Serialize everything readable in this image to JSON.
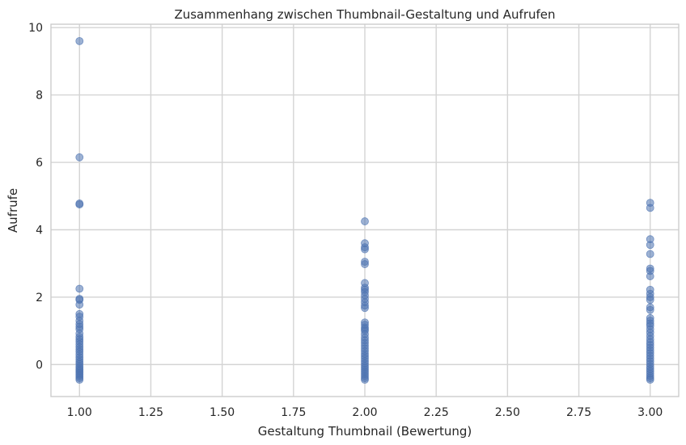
{
  "chart_data": {
    "type": "scatter",
    "title": "Zusammenhang zwischen Thumbnail-Gestaltung und Aufrufen",
    "xlabel": "Gestaltung Thumbnail (Bewertung)",
    "ylabel": "Aufrufe",
    "xlim": [
      0.9,
      3.1
    ],
    "ylim": [
      -0.95,
      10.1
    ],
    "x_ticks": [
      1.0,
      1.25,
      1.5,
      1.75,
      2.0,
      2.25,
      2.5,
      2.75,
      3.0
    ],
    "x_tick_labels": [
      "1.00",
      "1.25",
      "1.50",
      "1.75",
      "2.00",
      "2.25",
      "2.50",
      "2.75",
      "3.00"
    ],
    "y_ticks": [
      0,
      2,
      4,
      6,
      8,
      10
    ],
    "y_tick_labels": [
      "0",
      "2",
      "4",
      "6",
      "8",
      "10"
    ],
    "grid": true,
    "marker_color": "#4c72b0",
    "marker_opacity": 0.55,
    "points": [
      {
        "x": 1,
        "y": 9.6
      },
      {
        "x": 1,
        "y": 6.15
      },
      {
        "x": 1,
        "y": 4.78
      },
      {
        "x": 1,
        "y": 4.75
      },
      {
        "x": 1,
        "y": 2.25
      },
      {
        "x": 1,
        "y": 1.95
      },
      {
        "x": 1,
        "y": 1.92
      },
      {
        "x": 1,
        "y": 1.78
      },
      {
        "x": 1,
        "y": 1.5
      },
      {
        "x": 1,
        "y": 1.42
      },
      {
        "x": 1,
        "y": 1.3
      },
      {
        "x": 1,
        "y": 1.2
      },
      {
        "x": 1,
        "y": 1.12
      },
      {
        "x": 1,
        "y": 1.05
      },
      {
        "x": 1,
        "y": 0.92
      },
      {
        "x": 1,
        "y": 0.82
      },
      {
        "x": 1,
        "y": 0.75
      },
      {
        "x": 1,
        "y": 0.68
      },
      {
        "x": 1,
        "y": 0.6
      },
      {
        "x": 1,
        "y": 0.52
      },
      {
        "x": 1,
        "y": 0.45
      },
      {
        "x": 1,
        "y": 0.38
      },
      {
        "x": 1,
        "y": 0.3
      },
      {
        "x": 1,
        "y": 0.22
      },
      {
        "x": 1,
        "y": 0.15
      },
      {
        "x": 1,
        "y": 0.08
      },
      {
        "x": 1,
        "y": 0.02
      },
      {
        "x": 1,
        "y": -0.05
      },
      {
        "x": 1,
        "y": -0.1
      },
      {
        "x": 1,
        "y": -0.15
      },
      {
        "x": 1,
        "y": -0.2
      },
      {
        "x": 1,
        "y": -0.25
      },
      {
        "x": 1,
        "y": -0.3
      },
      {
        "x": 1,
        "y": -0.35
      },
      {
        "x": 1,
        "y": -0.4
      },
      {
        "x": 1,
        "y": -0.45
      },
      {
        "x": 2,
        "y": 4.25
      },
      {
        "x": 2,
        "y": 3.6
      },
      {
        "x": 2,
        "y": 3.48
      },
      {
        "x": 2,
        "y": 3.42
      },
      {
        "x": 2,
        "y": 3.05
      },
      {
        "x": 2,
        "y": 2.98
      },
      {
        "x": 2,
        "y": 2.42
      },
      {
        "x": 2,
        "y": 2.28
      },
      {
        "x": 2,
        "y": 2.22
      },
      {
        "x": 2,
        "y": 2.15
      },
      {
        "x": 2,
        "y": 2.05
      },
      {
        "x": 2,
        "y": 1.95
      },
      {
        "x": 2,
        "y": 1.85
      },
      {
        "x": 2,
        "y": 1.75
      },
      {
        "x": 2,
        "y": 1.68
      },
      {
        "x": 2,
        "y": 1.25
      },
      {
        "x": 2,
        "y": 1.18
      },
      {
        "x": 2,
        "y": 1.1
      },
      {
        "x": 2,
        "y": 1.05
      },
      {
        "x": 2,
        "y": 1.0
      },
      {
        "x": 2,
        "y": 0.9
      },
      {
        "x": 2,
        "y": 0.8
      },
      {
        "x": 2,
        "y": 0.72
      },
      {
        "x": 2,
        "y": 0.64
      },
      {
        "x": 2,
        "y": 0.56
      },
      {
        "x": 2,
        "y": 0.48
      },
      {
        "x": 2,
        "y": 0.4
      },
      {
        "x": 2,
        "y": 0.32
      },
      {
        "x": 2,
        "y": 0.25
      },
      {
        "x": 2,
        "y": 0.18
      },
      {
        "x": 2,
        "y": 0.1
      },
      {
        "x": 2,
        "y": 0.03
      },
      {
        "x": 2,
        "y": -0.04
      },
      {
        "x": 2,
        "y": -0.1
      },
      {
        "x": 2,
        "y": -0.16
      },
      {
        "x": 2,
        "y": -0.22
      },
      {
        "x": 2,
        "y": -0.28
      },
      {
        "x": 2,
        "y": -0.34
      },
      {
        "x": 2,
        "y": -0.4
      },
      {
        "x": 2,
        "y": -0.45
      },
      {
        "x": 3,
        "y": 4.8
      },
      {
        "x": 3,
        "y": 4.65
      },
      {
        "x": 3,
        "y": 3.72
      },
      {
        "x": 3,
        "y": 3.55
      },
      {
        "x": 3,
        "y": 3.28
      },
      {
        "x": 3,
        "y": 2.85
      },
      {
        "x": 3,
        "y": 2.78
      },
      {
        "x": 3,
        "y": 2.62
      },
      {
        "x": 3,
        "y": 2.22
      },
      {
        "x": 3,
        "y": 2.1
      },
      {
        "x": 3,
        "y": 2.0
      },
      {
        "x": 3,
        "y": 1.92
      },
      {
        "x": 3,
        "y": 1.7
      },
      {
        "x": 3,
        "y": 1.62
      },
      {
        "x": 3,
        "y": 1.38
      },
      {
        "x": 3,
        "y": 1.3
      },
      {
        "x": 3,
        "y": 1.22
      },
      {
        "x": 3,
        "y": 1.15
      },
      {
        "x": 3,
        "y": 1.05
      },
      {
        "x": 3,
        "y": 0.95
      },
      {
        "x": 3,
        "y": 0.85
      },
      {
        "x": 3,
        "y": 0.75
      },
      {
        "x": 3,
        "y": 0.66
      },
      {
        "x": 3,
        "y": 0.58
      },
      {
        "x": 3,
        "y": 0.5
      },
      {
        "x": 3,
        "y": 0.42
      },
      {
        "x": 3,
        "y": 0.34
      },
      {
        "x": 3,
        "y": 0.26
      },
      {
        "x": 3,
        "y": 0.18
      },
      {
        "x": 3,
        "y": 0.1
      },
      {
        "x": 3,
        "y": 0.02
      },
      {
        "x": 3,
        "y": -0.06
      },
      {
        "x": 3,
        "y": -0.13
      },
      {
        "x": 3,
        "y": -0.2
      },
      {
        "x": 3,
        "y": -0.27
      },
      {
        "x": 3,
        "y": -0.34
      },
      {
        "x": 3,
        "y": -0.4
      },
      {
        "x": 3,
        "y": -0.45
      }
    ]
  }
}
